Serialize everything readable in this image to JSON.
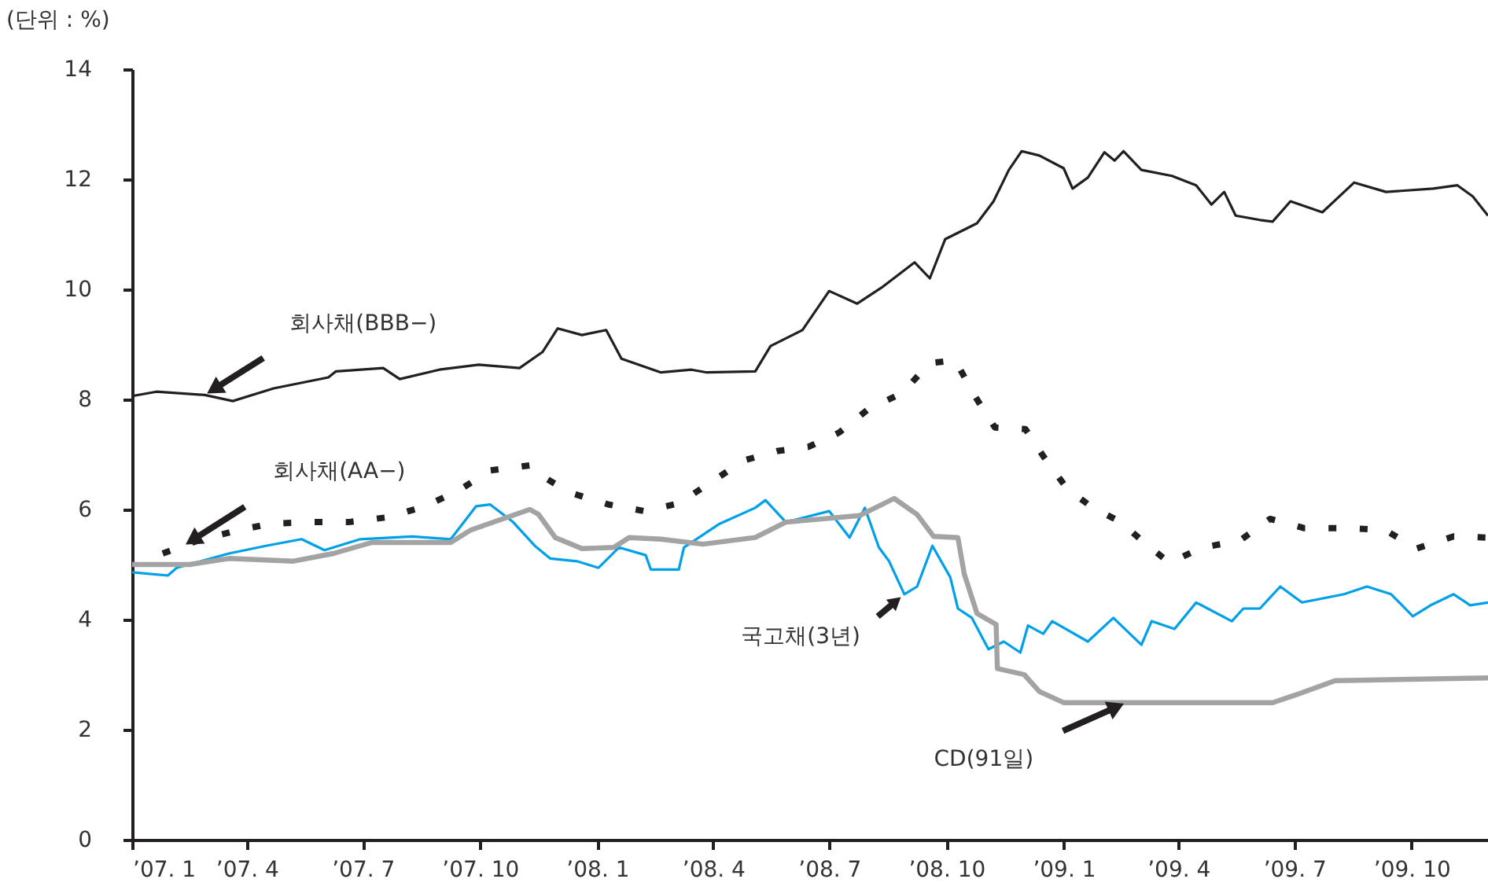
{
  "chart_data": {
    "type": "line",
    "ylabel": "(단위 : %)",
    "xlim": [
      "2007-01-01",
      "2009-11-30"
    ],
    "ylim": [
      0,
      14
    ],
    "yticks": [
      0,
      2,
      4,
      6,
      8,
      10,
      12,
      14
    ],
    "xticks": [
      {
        "value": "2007-01-01",
        "label": "’07. 1"
      },
      {
        "value": "2007-04-01",
        "label": "’07. 4"
      },
      {
        "value": "2007-07-01",
        "label": "’07. 7"
      },
      {
        "value": "2007-10-01",
        "label": "’07. 10"
      },
      {
        "value": "2008-01-01",
        "label": "’08. 1"
      },
      {
        "value": "2008-04-01",
        "label": "’08. 4"
      },
      {
        "value": "2008-07-01",
        "label": "’08. 7"
      },
      {
        "value": "2008-10-01",
        "label": "’08. 10"
      },
      {
        "value": "2009-01-01",
        "label": "’09. 1"
      },
      {
        "value": "2009-04-01",
        "label": "’09. 4"
      },
      {
        "value": "2009-07-01",
        "label": "’09. 7"
      },
      {
        "value": "2009-10-01",
        "label": "’09. 10"
      }
    ],
    "grid": false,
    "marker": "none",
    "series": [
      {
        "name": "회사채(BBB−)",
        "color": "#231f20",
        "line_style": "solid",
        "x": [
          "2007-01-01",
          "2007-01-20",
          "2007-02-27",
          "2007-03-21",
          "2007-04-22",
          "2007-06-04",
          "2007-06-10",
          "2007-07-17",
          "2007-07-30",
          "2007-08-30",
          "2007-09-30",
          "2007-11-01",
          "2007-11-19",
          "2007-12-01",
          "2007-12-20",
          "2008-01-08",
          "2008-01-20",
          "2008-02-20",
          "2008-03-15",
          "2008-03-27",
          "2008-05-04",
          "2008-05-16",
          "2008-06-10",
          "2008-07-01",
          "2008-07-23",
          "2008-08-11",
          "2008-09-06",
          "2008-09-18",
          "2008-09-30",
          "2008-10-25",
          "2008-11-07",
          "2008-11-19",
          "2008-11-29",
          "2008-12-13",
          "2009-01-01",
          "2009-01-08",
          "2009-01-20",
          "2009-02-02",
          "2009-02-10",
          "2009-02-17",
          "2009-03-03",
          "2009-03-27",
          "2009-04-15",
          "2009-04-27",
          "2009-05-07",
          "2009-05-16",
          "2009-06-04",
          "2009-06-14",
          "2009-06-28",
          "2009-07-23",
          "2009-08-17",
          "2009-09-11",
          "2009-10-18",
          "2009-11-06",
          "2009-11-18",
          "2009-11-30"
        ],
        "values": [
          8.06,
          8.14,
          8.08,
          7.97,
          8.2,
          8.4,
          8.51,
          8.57,
          8.37,
          8.54,
          8.63,
          8.57,
          8.86,
          9.29,
          9.17,
          9.26,
          8.74,
          8.49,
          8.54,
          8.49,
          8.51,
          8.97,
          9.26,
          9.97,
          9.74,
          10.03,
          10.49,
          10.2,
          10.91,
          11.2,
          11.6,
          12.17,
          12.51,
          12.43,
          12.2,
          11.83,
          12.03,
          12.49,
          12.34,
          12.51,
          12.17,
          12.06,
          11.89,
          11.54,
          11.77,
          11.34,
          11.26,
          11.23,
          11.6,
          11.4,
          11.94,
          11.77,
          11.83,
          11.89,
          11.69,
          11.34
        ]
      },
      {
        "name": "회사채(AA−)",
        "color": "#231f20",
        "line_style": "dotted",
        "x": [
          "2007-01-25",
          "2007-02-21",
          "2007-03-21",
          "2007-04-19",
          "2007-05-21",
          "2007-06-20",
          "2007-07-21",
          "2007-08-19",
          "2007-09-14",
          "2007-10-09",
          "2007-11-09",
          "2007-11-15",
          "2007-12-10",
          "2008-01-10",
          "2008-02-07",
          "2008-03-05",
          "2008-03-30",
          "2008-04-25",
          "2008-05-21",
          "2008-06-15",
          "2008-07-09",
          "2008-08-01",
          "2008-08-27",
          "2008-09-18",
          "2008-10-08",
          "2008-10-22",
          "2008-11-08",
          "2008-12-02",
          "2008-12-16",
          "2009-01-04",
          "2009-01-24",
          "2009-02-15",
          "2009-03-05",
          "2009-03-25",
          "2009-04-20",
          "2009-05-19",
          "2009-06-12",
          "2009-07-09",
          "2009-08-10",
          "2009-09-10",
          "2009-10-05",
          "2009-11-03",
          "2009-11-28"
        ],
        "values": [
          5.2,
          5.43,
          5.6,
          5.74,
          5.77,
          5.77,
          5.86,
          6.06,
          6.34,
          6.71,
          6.8,
          6.66,
          6.31,
          6.09,
          5.97,
          6.11,
          6.49,
          6.89,
          7.06,
          7.14,
          7.4,
          7.83,
          8.11,
          8.66,
          8.71,
          8.11,
          7.49,
          7.46,
          6.97,
          6.37,
          6.03,
          5.77,
          5.4,
          5.03,
          5.31,
          5.43,
          5.83,
          5.66,
          5.66,
          5.63,
          5.29,
          5.51,
          5.49
        ]
      },
      {
        "name": "국고채(3년)",
        "color": "#00a0e9",
        "line_style": "solid",
        "x": [
          "2007-01-01",
          "2007-01-29",
          "2007-02-05",
          "2007-03-18",
          "2007-04-16",
          "2007-05-14",
          "2007-06-01",
          "2007-06-29",
          "2007-08-09",
          "2007-09-08",
          "2007-09-28",
          "2007-10-09",
          "2007-10-27",
          "2007-11-13",
          "2007-11-25",
          "2007-12-16",
          "2008-01-02",
          "2008-01-18",
          "2008-02-08",
          "2008-02-12",
          "2008-03-05",
          "2008-03-09",
          "2008-04-06",
          "2008-05-04",
          "2008-05-12",
          "2008-05-28",
          "2008-07-01",
          "2008-07-17",
          "2008-07-29",
          "2008-08-09",
          "2008-08-17",
          "2008-08-29",
          "2008-09-08",
          "2008-09-20",
          "2008-10-04",
          "2008-10-10",
          "2008-10-21",
          "2008-11-03",
          "2008-11-15",
          "2008-11-28",
          "2008-12-04",
          "2008-12-16",
          "2008-12-23",
          "2009-01-20",
          "2009-02-09",
          "2009-03-03",
          "2009-03-11",
          "2009-03-29",
          "2009-04-15",
          "2009-05-13",
          "2009-05-22",
          "2009-06-04",
          "2009-06-20",
          "2009-07-07",
          "2009-08-09",
          "2009-08-27",
          "2009-09-15",
          "2009-10-02",
          "2009-10-16",
          "2009-11-03",
          "2009-11-16",
          "2009-11-30"
        ],
        "values": [
          4.86,
          4.8,
          4.94,
          5.2,
          5.34,
          5.46,
          5.26,
          5.46,
          5.51,
          5.46,
          6.06,
          6.09,
          5.77,
          5.34,
          5.11,
          5.06,
          4.94,
          5.31,
          5.17,
          4.91,
          4.91,
          5.31,
          5.74,
          6.03,
          6.17,
          5.77,
          5.97,
          5.49,
          6.03,
          5.31,
          5.06,
          4.46,
          4.6,
          5.34,
          4.77,
          4.2,
          4.03,
          3.46,
          3.6,
          3.4,
          3.89,
          3.74,
          3.97,
          3.6,
          4.03,
          3.54,
          3.97,
          3.83,
          4.31,
          3.97,
          4.2,
          4.2,
          4.6,
          4.31,
          4.46,
          4.6,
          4.46,
          4.06,
          4.26,
          4.46,
          4.26,
          4.31
        ]
      },
      {
        "name": "CD(91일)",
        "color": "#a3a3a3",
        "line_style": "solid",
        "x": [
          "2007-01-01",
          "2007-02-15",
          "2007-03-18",
          "2007-05-07",
          "2007-06-08",
          "2007-07-08",
          "2007-09-08",
          "2007-09-24",
          "2007-11-09",
          "2007-11-16",
          "2007-11-29",
          "2007-12-20",
          "2008-01-14",
          "2008-01-26",
          "2008-02-20",
          "2008-03-24",
          "2008-05-04",
          "2008-05-28",
          "2008-07-25",
          "2008-08-21",
          "2008-09-08",
          "2008-09-21",
          "2008-10-10",
          "2008-10-15",
          "2008-10-25",
          "2008-11-09",
          "2008-11-10",
          "2008-12-01",
          "2008-12-13",
          "2009-01-01",
          "2009-06-14",
          "2009-07-02",
          "2009-08-02",
          "2009-11-30"
        ],
        "values": [
          5.0,
          5.0,
          5.11,
          5.06,
          5.2,
          5.4,
          5.4,
          5.63,
          6.0,
          5.91,
          5.49,
          5.29,
          5.31,
          5.49,
          5.46,
          5.37,
          5.49,
          5.77,
          5.89,
          6.2,
          5.91,
          5.51,
          5.49,
          4.83,
          4.11,
          3.91,
          3.11,
          3.0,
          2.69,
          2.49,
          2.49,
          2.63,
          2.89,
          2.94
        ]
      }
    ]
  }
}
